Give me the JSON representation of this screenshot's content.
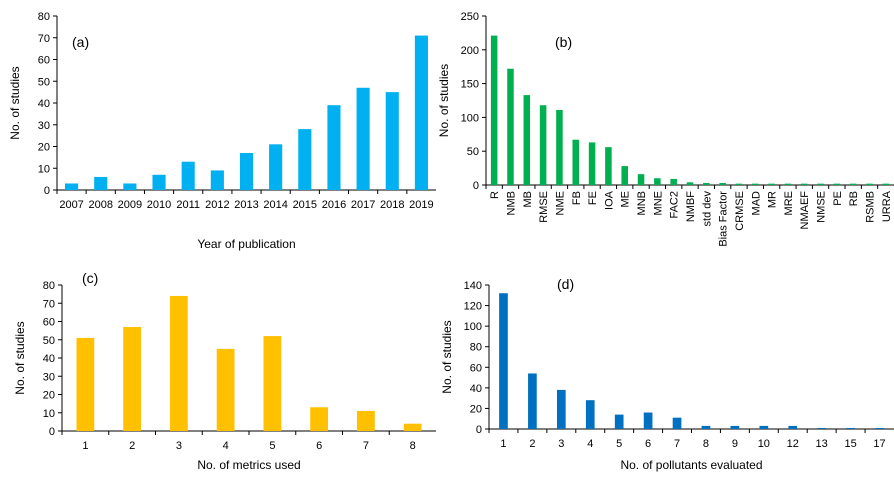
{
  "chart_data": [
    {
      "id": "a",
      "type": "bar",
      "panel_label": "(a)",
      "title": "",
      "xlabel": "Year of publication",
      "ylabel": "No. of studies",
      "ylim": [
        0,
        80
      ],
      "yticks": [
        0,
        10,
        20,
        30,
        40,
        50,
        60,
        70,
        80
      ],
      "categories": [
        "2007",
        "2008",
        "2009",
        "2010",
        "2011",
        "2012",
        "2013",
        "2014",
        "2015",
        "2016",
        "2017",
        "2018",
        "2019"
      ],
      "values": [
        3,
        6,
        3,
        7,
        13,
        9,
        17,
        21,
        28,
        39,
        47,
        45,
        71
      ],
      "color": "#00B0F0",
      "grid": false,
      "legend": "none"
    },
    {
      "id": "b",
      "type": "bar",
      "panel_label": "(b)",
      "title": "",
      "xlabel": "",
      "ylabel": "No. of studies",
      "ylim": [
        0,
        250
      ],
      "yticks": [
        0,
        50,
        100,
        150,
        200,
        250
      ],
      "categories": [
        "R",
        "NMB",
        "MB",
        "RMSE",
        "NME",
        "FB",
        "FE",
        "IOA",
        "ME",
        "MNB",
        "MNE",
        "FAC2",
        "NMBF",
        "std dev",
        "Bias Factor",
        "CRMSE",
        "MAD",
        "MR",
        "MRE",
        "NMAEF",
        "NMSE",
        "PE",
        "RB",
        "RSMB",
        "URRA"
      ],
      "values": [
        221,
        172,
        133,
        118,
        111,
        67,
        63,
        56,
        28,
        16,
        10,
        9,
        4,
        3,
        3,
        2,
        2,
        2,
        2,
        2,
        2,
        2,
        2,
        2,
        2
      ],
      "color": "#00B050",
      "grid": false,
      "legend": "none"
    },
    {
      "id": "c",
      "type": "bar",
      "panel_label": "(c)",
      "title": "",
      "xlabel": "No. of metrics used",
      "ylabel": "No. of studies",
      "ylim": [
        0,
        80
      ],
      "yticks": [
        0,
        10,
        20,
        30,
        40,
        50,
        60,
        70,
        80
      ],
      "categories": [
        "1",
        "2",
        "3",
        "4",
        "5",
        "6",
        "7",
        "8"
      ],
      "values": [
        51,
        57,
        74,
        45,
        52,
        13,
        11,
        4
      ],
      "color": "#FFC000",
      "grid": false,
      "legend": "none"
    },
    {
      "id": "d",
      "type": "bar",
      "panel_label": "(d)",
      "title": "",
      "xlabel": "No. of pollutants evaluated",
      "ylabel": "No. of studies",
      "ylim": [
        0,
        140
      ],
      "yticks": [
        0,
        20,
        40,
        60,
        80,
        100,
        120,
        140
      ],
      "categories": [
        "1",
        "2",
        "3",
        "4",
        "5",
        "6",
        "7",
        "8",
        "9",
        "10",
        "12",
        "13",
        "15",
        "17"
      ],
      "values": [
        132,
        54,
        38,
        28,
        14,
        16,
        11,
        3,
        3,
        3,
        3,
        1,
        1,
        1
      ],
      "color": "#0070C0",
      "grid": false,
      "legend": "none"
    }
  ]
}
